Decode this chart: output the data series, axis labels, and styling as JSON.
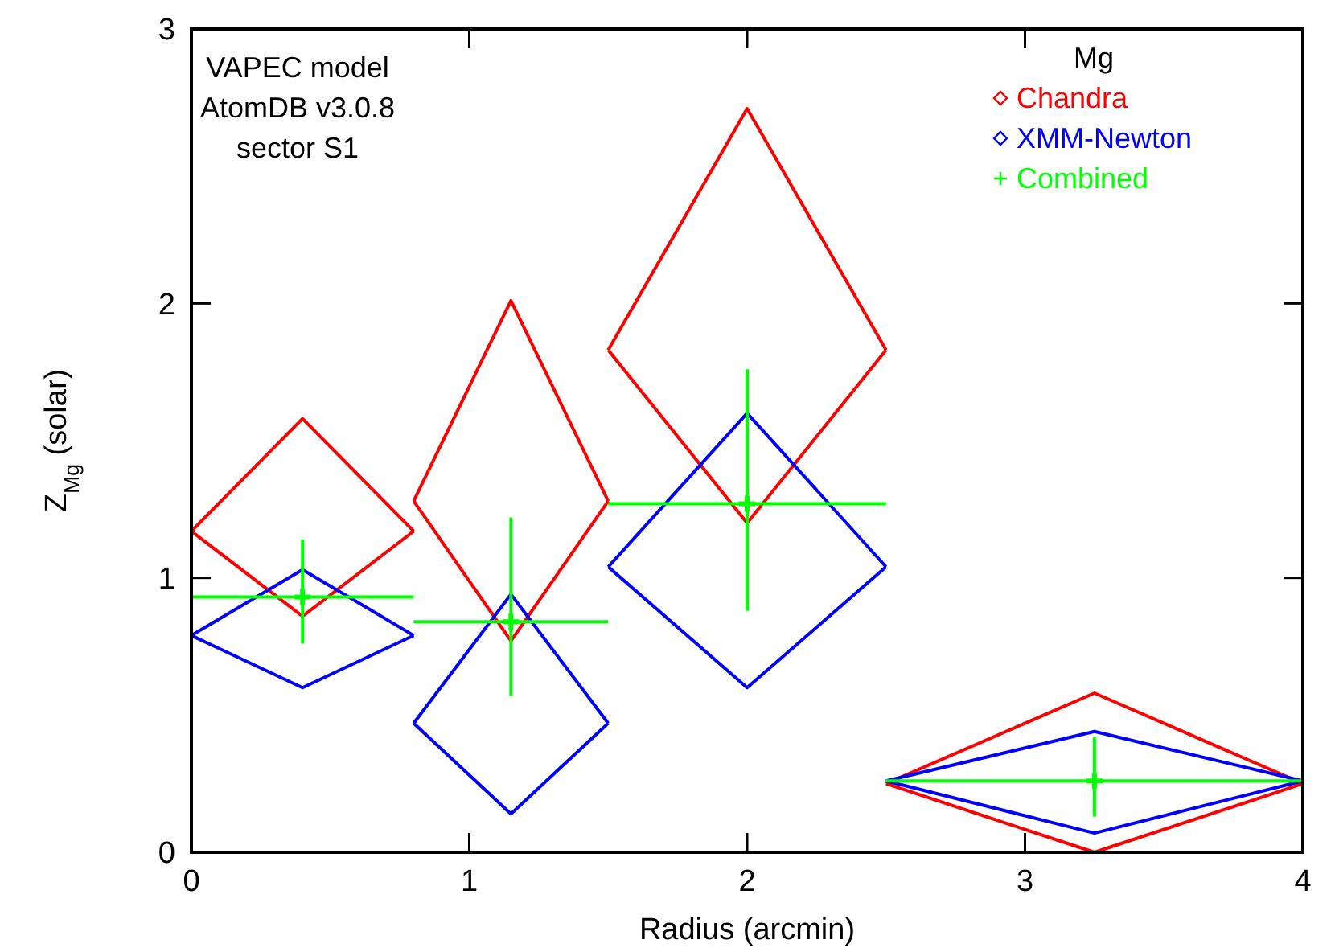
{
  "chart_data": {
    "type": "line",
    "xlabel": "Radius (arcmin)",
    "ylabel": "Z$_{Mg}$ (solar)",
    "xlim": [
      0,
      4
    ],
    "ylim": [
      0,
      3
    ],
    "xticks": [
      0,
      1,
      2,
      3,
      4
    ],
    "yticks": [
      0,
      1,
      2,
      3
    ],
    "grid": false,
    "legend": "top right",
    "legend_title": "Mg",
    "annotations": [
      "VAPEC model",
      "AtomDB v3.0.8",
      "sector S1"
    ],
    "series": [
      {
        "name": "Chandra",
        "color": "#ff0000",
        "x": [
          0,
          0.4,
          0.8
        ],
        "values": [
          1.17,
          1.58,
          1.17
        ]
      },
      {
        "color": "#ff0000",
        "x": [
          0,
          0.4,
          0.8
        ],
        "values": [
          1.17,
          0.86,
          1.17
        ]
      },
      {
        "color": "#ff0000",
        "x": [
          0.8,
          1.15,
          1.5
        ],
        "values": [
          1.28,
          2.01,
          1.28
        ]
      },
      {
        "color": "#ff0000",
        "x": [
          0.8,
          1.15,
          1.5
        ],
        "values": [
          1.28,
          0.77,
          1.28
        ]
      },
      {
        "color": "#ff0000",
        "x": [
          1.5,
          2,
          2.5
        ],
        "values": [
          1.83,
          2.71,
          1.83
        ]
      },
      {
        "color": "#ff0000",
        "x": [
          1.5,
          2,
          2.5
        ],
        "values": [
          1.83,
          1.2,
          1.83
        ]
      },
      {
        "color": "#ff0000",
        "x": [
          2.5,
          3.25,
          4
        ],
        "values": [
          0.25,
          0.58,
          0.25
        ]
      },
      {
        "color": "#ff0000",
        "x": [
          2.5,
          3.25,
          4
        ],
        "values": [
          0.25,
          0,
          0.25
        ]
      },
      {
        "name": "XMM-Newton",
        "color": "#0000ff",
        "x": [
          0,
          0.4,
          0.8
        ],
        "values": [
          0.79,
          1.03,
          0.79
        ]
      },
      {
        "color": "#0000ff",
        "x": [
          0,
          0.4,
          0.8
        ],
        "values": [
          0.79,
          0.6,
          0.79
        ]
      },
      {
        "color": "#0000ff",
        "x": [
          0.8,
          1.15,
          1.5
        ],
        "values": [
          0.47,
          0.94,
          0.47
        ]
      },
      {
        "color": "#0000ff",
        "x": [
          0.8,
          1.15,
          1.5
        ],
        "values": [
          0.47,
          0.14,
          0.47
        ]
      },
      {
        "color": "#0000ff",
        "x": [
          1.5,
          2,
          2.5
        ],
        "values": [
          1.04,
          1.6,
          1.04
        ]
      },
      {
        "color": "#0000ff",
        "x": [
          1.5,
          2,
          2.5
        ],
        "values": [
          1.04,
          0.6,
          1.04
        ]
      },
      {
        "color": "#0000ff",
        "x": [
          2.5,
          3.25,
          4
        ],
        "values": [
          0.26,
          0.44,
          0.26
        ]
      },
      {
        "color": "#0000ff",
        "x": [
          2.5,
          3.25,
          4
        ],
        "values": [
          0.26,
          0.07,
          0.26
        ]
      },
      {
        "name": "Combined",
        "type": "scatter",
        "color": "#00ff00",
        "marker": "cross",
        "x": [
          0.4,
          1.15,
          2,
          3.25
        ],
        "values": [
          0.93,
          0.84,
          1.27,
          0.26
        ],
        "errors": [
          [
            0.76,
            1.14
          ],
          [
            0.57,
            1.22
          ],
          [
            0.88,
            1.76
          ],
          [
            0.13,
            0.42
          ]
        ],
        "xerrors": [
          [
            0,
            0.8
          ],
          [
            0.8,
            1.5
          ],
          [
            1.5,
            2.5
          ],
          [
            2.5,
            4
          ]
        ]
      }
    ]
  }
}
